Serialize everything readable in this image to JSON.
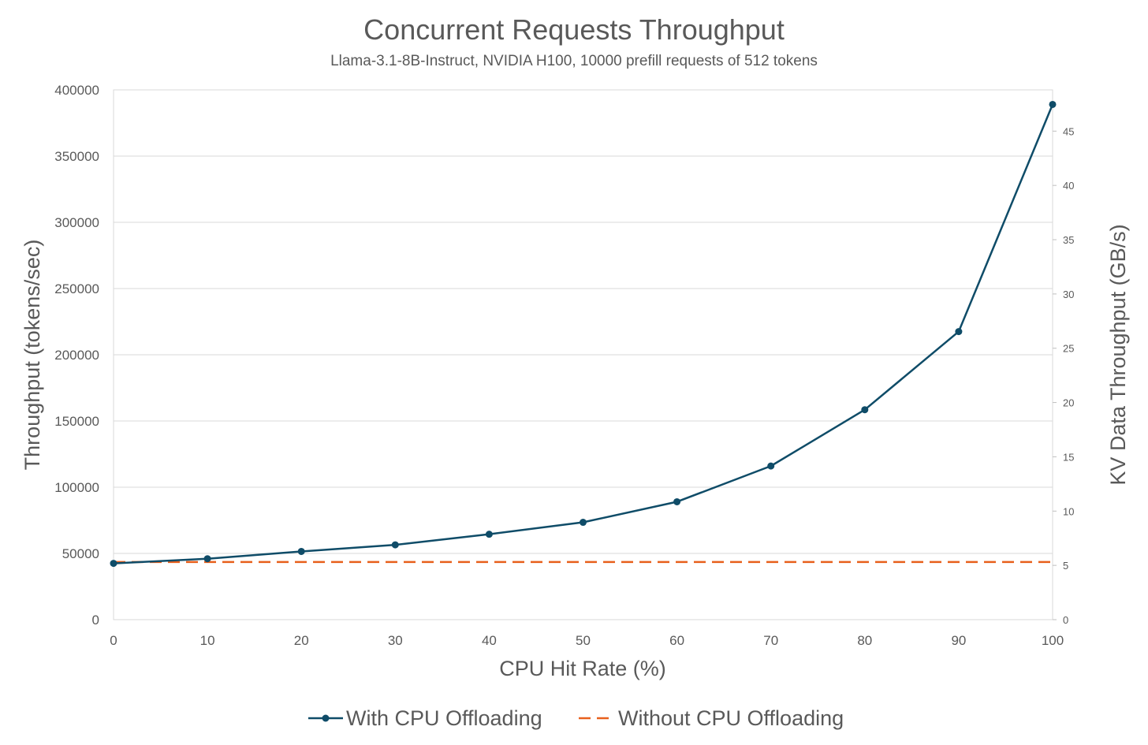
{
  "chart_data": {
    "type": "line",
    "title": "Concurrent Requests Throughput",
    "subtitle": "Llama-3.1-8B-Instruct, NVIDIA H100, 10000 prefill requests of 512 tokens",
    "xlabel": "CPU Hit Rate (%)",
    "ylabel": "Throughput (tokens/sec)",
    "y2label": "KV Data Throughput (GB/s)",
    "x": [
      0,
      10,
      20,
      30,
      40,
      50,
      60,
      70,
      80,
      90,
      100
    ],
    "xlim": [
      0,
      100
    ],
    "ylim": [
      0,
      400000
    ],
    "y2lim": [
      0,
      48.8
    ],
    "xticks": [
      "0",
      "10",
      "20",
      "30",
      "40",
      "50",
      "60",
      "70",
      "80",
      "90",
      "100"
    ],
    "yticks": [
      "0",
      "50000",
      "100000",
      "150000",
      "200000",
      "250000",
      "300000",
      "350000",
      "400000"
    ],
    "y2ticks": [
      "0",
      "5",
      "10",
      "15",
      "20",
      "25",
      "30",
      "35",
      "40",
      "45"
    ],
    "grid": true,
    "legend_position": "bottom",
    "series": [
      {
        "name": "With CPU Offloading",
        "color": "#0f4c68",
        "style": "solid-markers",
        "values": [
          42500,
          46000,
          51500,
          56500,
          64500,
          73500,
          89000,
          116000,
          158500,
          217500,
          389000
        ]
      },
      {
        "name": "Without CPU Offloading",
        "color": "#e8601c",
        "style": "dashed",
        "values": [
          43500,
          43500,
          43500,
          43500,
          43500,
          43500,
          43500,
          43500,
          43500,
          43500,
          43500
        ]
      }
    ]
  }
}
